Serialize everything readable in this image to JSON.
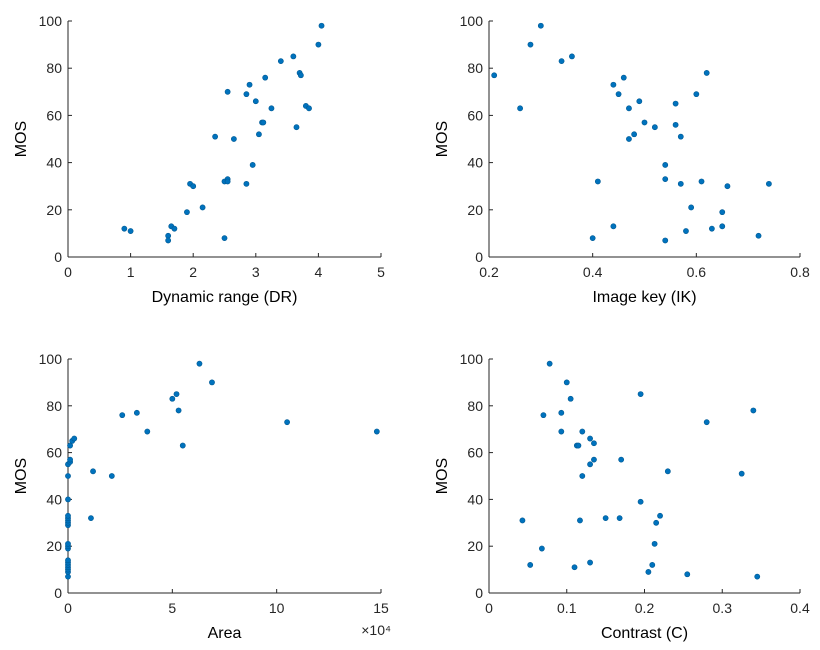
{
  "chart_data": [
    {
      "type": "scatter",
      "xlabel": "Dynamic range (DR)",
      "ylabel": "MOS",
      "color": "#0072bd",
      "x": [
        0.9,
        1.0,
        1.6,
        1.65,
        1.7,
        1.6,
        1.9,
        1.95,
        2.0,
        2.15,
        2.5,
        2.55,
        2.55,
        2.5,
        2.35,
        2.55,
        2.65,
        2.85,
        2.85,
        2.9,
        2.95,
        3.0,
        3.05,
        3.1,
        3.12,
        3.15,
        3.25,
        3.4,
        3.6,
        3.65,
        3.7,
        3.72,
        3.8,
        3.85,
        4.0,
        4.05
      ],
      "y": [
        12,
        11,
        9,
        13,
        12,
        7,
        19,
        31,
        30,
        21,
        32,
        33,
        32,
        8,
        51,
        70,
        50,
        31,
        69,
        73,
        39,
        66,
        52,
        57,
        57,
        76,
        63,
        83,
        85,
        55,
        78,
        77,
        64,
        63,
        90,
        98
      ],
      "xlim": [
        0,
        5
      ],
      "ylim": [
        0,
        100
      ],
      "xticks": [
        0,
        1,
        2,
        3,
        4,
        5
      ],
      "yticks": [
        0,
        20,
        40,
        60,
        80,
        100
      ]
    },
    {
      "type": "scatter",
      "xlabel": "Image key (IK)",
      "ylabel": "MOS",
      "color": "#0072bd",
      "x": [
        0.21,
        0.26,
        0.28,
        0.3,
        0.34,
        0.36,
        0.4,
        0.41,
        0.44,
        0.44,
        0.45,
        0.46,
        0.47,
        0.47,
        0.48,
        0.49,
        0.5,
        0.52,
        0.54,
        0.54,
        0.54,
        0.56,
        0.56,
        0.57,
        0.57,
        0.58,
        0.59,
        0.6,
        0.61,
        0.62,
        0.63,
        0.65,
        0.65,
        0.66,
        0.72,
        0.74
      ],
      "y": [
        77,
        63,
        90,
        98,
        83,
        85,
        8,
        32,
        13,
        73,
        69,
        76,
        63,
        50,
        52,
        66,
        57,
        55,
        7,
        39,
        33,
        65,
        56,
        51,
        31,
        11,
        21,
        69,
        32,
        78,
        12,
        13,
        19,
        30,
        9,
        31
      ],
      "xlim": [
        0.2,
        0.8
      ],
      "ylim": [
        0,
        100
      ],
      "xticks": [
        0.2,
        0.4,
        0.6,
        0.8
      ],
      "yticks": [
        0,
        20,
        40,
        60,
        80,
        100
      ]
    },
    {
      "type": "scatter",
      "xlabel": "Area",
      "ylabel": "MOS",
      "color": "#0072bd",
      "x_exponent_label": "×10⁴",
      "x": [
        0,
        0,
        0,
        0,
        0,
        0,
        0,
        0,
        0,
        0,
        0,
        0,
        0,
        0,
        0,
        0,
        0,
        0,
        0.1,
        0.1,
        0.1,
        0.2,
        0.3,
        1.1,
        1.2,
        2.1,
        2.6,
        3.3,
        3.8,
        5.0,
        5.2,
        5.3,
        5.5,
        6.3,
        6.9,
        10.5,
        14.8
      ],
      "y": [
        7,
        9,
        10,
        11,
        12,
        13,
        14,
        19,
        20,
        21,
        29,
        30,
        31,
        32,
        33,
        40,
        50,
        55,
        56,
        57,
        63,
        65,
        66,
        32,
        52,
        50,
        76,
        77,
        69,
        83,
        85,
        78,
        63,
        98,
        90,
        73,
        69
      ],
      "xlim": [
        0,
        15
      ],
      "ylim": [
        0,
        100
      ],
      "xticks": [
        0,
        5,
        10,
        15
      ],
      "yticks": [
        0,
        20,
        40,
        60,
        80,
        100
      ]
    },
    {
      "type": "scatter",
      "xlabel": "Contrast (C)",
      "ylabel": "MOS",
      "color": "#0072bd",
      "x": [
        0.043,
        0.053,
        0.068,
        0.07,
        0.078,
        0.093,
        0.093,
        0.1,
        0.105,
        0.11,
        0.113,
        0.115,
        0.117,
        0.12,
        0.12,
        0.13,
        0.13,
        0.13,
        0.135,
        0.135,
        0.15,
        0.168,
        0.17,
        0.195,
        0.195,
        0.205,
        0.21,
        0.213,
        0.215,
        0.22,
        0.23,
        0.255,
        0.28,
        0.325,
        0.34,
        0.345
      ],
      "y": [
        31,
        12,
        19,
        76,
        98,
        77,
        69,
        90,
        83,
        11,
        63,
        63,
        31,
        69,
        50,
        13,
        66,
        55,
        57,
        64,
        32,
        32,
        57,
        85,
        39,
        9,
        12,
        21,
        30,
        33,
        52,
        8,
        73,
        51,
        78,
        7
      ],
      "xlim": [
        0,
        0.4
      ],
      "ylim": [
        0,
        100
      ],
      "xticks": [
        0,
        0.1,
        0.2,
        0.3,
        0.4
      ],
      "yticks": [
        0,
        20,
        40,
        60,
        80,
        100
      ]
    }
  ]
}
